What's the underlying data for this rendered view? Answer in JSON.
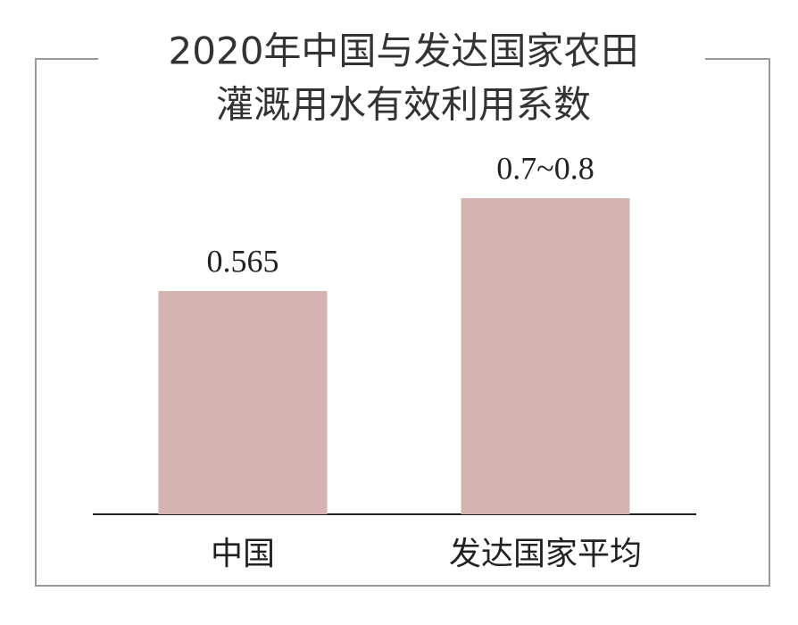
{
  "chart_data": {
    "type": "bar",
    "title": [
      "2020年中国与发达国家农田",
      "灌溉用水有效利用系数"
    ],
    "categories": [
      "中国",
      "发达国家平均"
    ],
    "values": [
      0.565,
      0.8
    ],
    "value_labels": [
      "0.565",
      "0.7~0.8"
    ],
    "color": "#d4b3b1"
  }
}
